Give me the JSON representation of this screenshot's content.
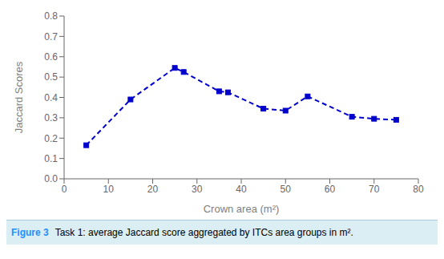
{
  "chart_data": {
    "type": "line",
    "x": [
      5,
      15,
      25,
      27,
      35,
      37,
      45,
      50,
      55,
      65,
      70,
      75
    ],
    "values": [
      0.165,
      0.39,
      0.545,
      0.525,
      0.43,
      0.425,
      0.345,
      0.335,
      0.405,
      0.305,
      0.295,
      0.29
    ],
    "color": "#0000CC",
    "marker": "square",
    "line_style": "dashed",
    "xlabel": "Crown area (m²)",
    "ylabel": "Jaccard Scores",
    "xlim": [
      0,
      80
    ],
    "ylim": [
      0,
      0.8
    ],
    "xticks": [
      0,
      10,
      20,
      30,
      40,
      50,
      60,
      70,
      80
    ],
    "yticks": [
      {
        "value": 0,
        "label": "0.0"
      },
      0.1,
      0.2,
      0.3,
      0.4,
      0.5,
      0.6,
      0.7,
      0.8
    ],
    "annotations": [
      "Figure 3",
      "Task 1: average Jaccard score aggregated by ITCs area groups in m²."
    ]
  }
}
